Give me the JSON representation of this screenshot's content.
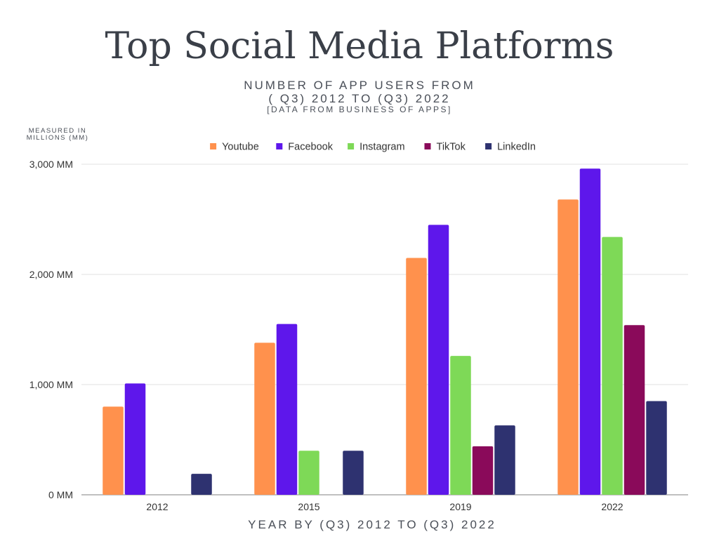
{
  "chart_data": {
    "type": "bar",
    "title": "Top Social Media Platforms",
    "subtitle_lines": [
      "NUMBER OF APP USERS FROM",
      "( Q3) 2012 TO (Q3) 2022",
      "[DATA FROM BUSINESS OF APPS]"
    ],
    "unit_label_lines": [
      "MEASURED IN",
      "MILLIONS (MM)"
    ],
    "xlabel": "YEAR BY (Q3) 2012 TO (Q3) 2022",
    "categories": [
      "2012",
      "2015",
      "2019",
      "2022"
    ],
    "ylim": [
      0,
      3000
    ],
    "yticks": [
      0,
      1000,
      2000,
      3000
    ],
    "ytick_labels": [
      "0 MM",
      "1,000 MM",
      "2,000 MM",
      "3,000 MM"
    ],
    "grid": true,
    "legend_position": "top",
    "series": [
      {
        "name": "Youtube",
        "color": "#ff914d",
        "values": [
          800,
          1380,
          2150,
          2680
        ]
      },
      {
        "name": "Facebook",
        "color": "#5e17eb",
        "values": [
          1010,
          1550,
          2450,
          2960
        ]
      },
      {
        "name": "Instagram",
        "color": "#7ed957",
        "values": [
          0,
          400,
          1260,
          2340
        ]
      },
      {
        "name": "TikTok",
        "color": "#8a0a5a",
        "values": [
          0,
          0,
          440,
          1540
        ]
      },
      {
        "name": "LinkedIn",
        "color": "#2e3270",
        "values": [
          190,
          400,
          630,
          850
        ]
      }
    ]
  }
}
